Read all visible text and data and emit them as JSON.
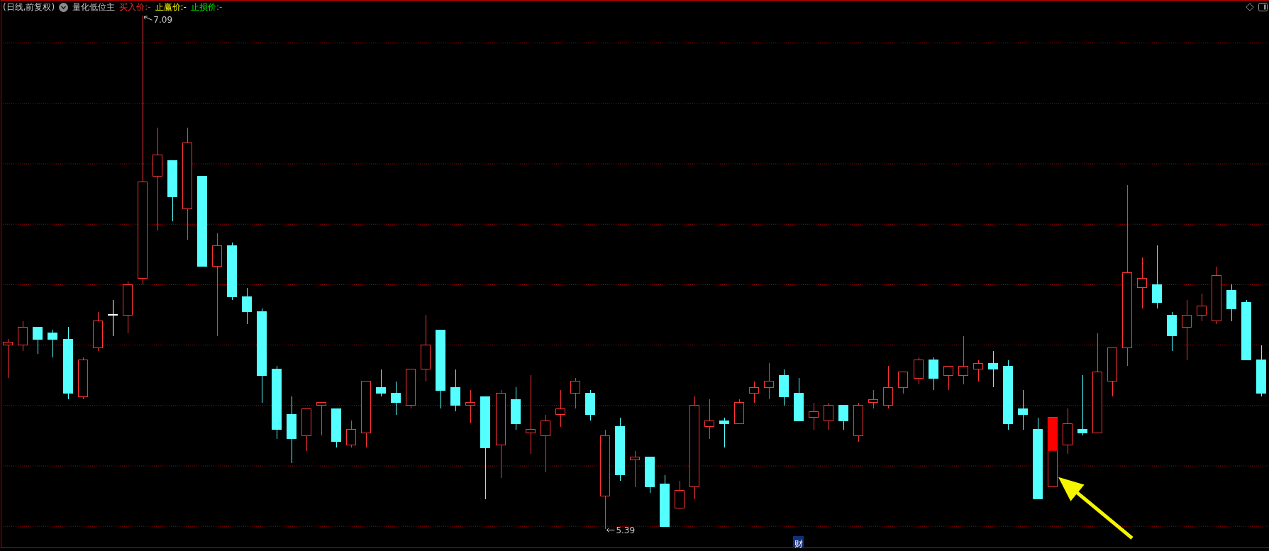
{
  "chart_data": {
    "type": "candlestick",
    "title": "(日线,前复权)",
    "subtitle": "量化低位主",
    "annotations": [
      "买入价:-",
      "止赢价:-",
      "止损价:-",
      "7.09",
      "5.39",
      "财"
    ],
    "categories": [
      null,
      null,
      null,
      null,
      null,
      null,
      null,
      null,
      null,
      null,
      null,
      null,
      null,
      null,
      null,
      null,
      null,
      null,
      null,
      null,
      null,
      null,
      null,
      null,
      null,
      null,
      null,
      null,
      null,
      null,
      null,
      null,
      null,
      null,
      null,
      null,
      null,
      null,
      null,
      null,
      null,
      null,
      null,
      null,
      null,
      null,
      null,
      null,
      null,
      null,
      null,
      null,
      null,
      null,
      null,
      null,
      null,
      null,
      null,
      null,
      null,
      null,
      null,
      null,
      null,
      null,
      null,
      null,
      null,
      null,
      null,
      null,
      null,
      null,
      null,
      null,
      null,
      null,
      null,
      null,
      null,
      null,
      null,
      null,
      null
    ],
    "ohlc": [
      [
        6.0,
        6.02,
        5.89,
        6.01
      ],
      [
        6.0,
        6.08,
        5.98,
        6.06
      ],
      [
        6.06,
        6.06,
        5.97,
        6.02
      ],
      [
        6.04,
        6.05,
        5.96,
        6.02
      ],
      [
        6.02,
        6.06,
        5.82,
        5.84
      ],
      [
        5.83,
        5.96,
        5.82,
        5.95
      ],
      [
        5.99,
        6.11,
        5.98,
        6.08
      ],
      [
        6.1,
        6.15,
        6.03,
        6.1
      ],
      [
        6.1,
        6.21,
        6.04,
        6.2
      ],
      [
        6.22,
        7.09,
        6.2,
        6.54
      ],
      [
        6.56,
        6.72,
        6.38,
        6.63
      ],
      [
        6.61,
        6.61,
        6.41,
        6.49
      ],
      [
        6.45,
        6.72,
        6.35,
        6.67
      ],
      [
        6.56,
        6.56,
        6.26,
        6.26
      ],
      [
        6.26,
        6.37,
        6.03,
        6.33
      ],
      [
        6.33,
        6.34,
        6.15,
        6.16
      ],
      [
        6.16,
        6.19,
        6.07,
        6.11
      ],
      [
        6.11,
        6.12,
        5.81,
        5.9
      ],
      [
        5.92,
        5.93,
        5.69,
        5.72
      ],
      [
        5.77,
        5.83,
        5.61,
        5.69
      ],
      [
        5.7,
        5.79,
        5.65,
        5.79
      ],
      [
        5.8,
        5.81,
        5.7,
        5.81
      ],
      [
        5.79,
        5.79,
        5.66,
        5.68
      ],
      [
        5.67,
        5.75,
        5.66,
        5.72
      ],
      [
        5.71,
        5.88,
        5.66,
        5.88
      ],
      [
        5.86,
        5.92,
        5.83,
        5.84
      ],
      [
        5.84,
        5.88,
        5.77,
        5.81
      ],
      [
        5.8,
        5.92,
        5.79,
        5.92
      ],
      [
        5.92,
        6.1,
        5.88,
        6.0
      ],
      [
        6.05,
        6.05,
        5.79,
        5.85
      ],
      [
        5.86,
        5.92,
        5.78,
        5.8
      ],
      [
        5.8,
        5.85,
        5.74,
        5.81
      ],
      [
        5.83,
        5.83,
        5.49,
        5.66
      ],
      [
        5.67,
        5.85,
        5.56,
        5.84
      ],
      [
        5.82,
        5.86,
        5.72,
        5.74
      ],
      [
        5.71,
        5.9,
        5.64,
        5.72
      ],
      [
        5.7,
        5.77,
        5.58,
        5.75
      ],
      [
        5.77,
        5.85,
        5.73,
        5.79
      ],
      [
        5.84,
        5.89,
        5.79,
        5.88
      ],
      [
        5.84,
        5.85,
        5.75,
        5.77
      ],
      [
        5.5,
        5.72,
        5.39,
        5.7
      ],
      [
        5.73,
        5.76,
        5.55,
        5.57
      ],
      [
        5.62,
        5.65,
        5.53,
        5.63
      ],
      [
        5.63,
        5.63,
        5.51,
        5.53
      ],
      [
        5.54,
        5.57,
        5.4,
        5.4
      ],
      [
        5.46,
        5.55,
        5.46,
        5.52
      ],
      [
        5.53,
        5.83,
        5.49,
        5.8
      ],
      [
        5.73,
        5.82,
        5.69,
        5.75
      ],
      [
        5.75,
        5.76,
        5.66,
        5.74
      ],
      [
        5.74,
        5.82,
        5.74,
        5.81
      ],
      [
        5.84,
        5.88,
        5.81,
        5.86
      ],
      [
        5.86,
        5.94,
        5.82,
        5.88
      ],
      [
        5.9,
        5.92,
        5.8,
        5.83
      ],
      [
        5.84,
        5.89,
        5.75,
        5.75
      ],
      [
        5.76,
        5.81,
        5.72,
        5.78
      ],
      [
        5.75,
        5.81,
        5.72,
        5.8
      ],
      [
        5.8,
        5.8,
        5.72,
        5.75
      ],
      [
        5.7,
        5.81,
        5.68,
        5.8
      ],
      [
        5.81,
        5.85,
        5.79,
        5.82
      ],
      [
        5.8,
        5.93,
        5.79,
        5.86
      ],
      [
        5.86,
        5.91,
        5.84,
        5.91
      ],
      [
        5.89,
        5.96,
        5.87,
        5.95
      ],
      [
        5.95,
        5.96,
        5.85,
        5.89
      ],
      [
        5.9,
        5.93,
        5.85,
        5.93
      ],
      [
        5.9,
        6.03,
        5.87,
        5.93
      ],
      [
        5.92,
        5.95,
        5.88,
        5.94
      ],
      [
        5.94,
        5.98,
        5.86,
        5.92
      ],
      [
        5.93,
        5.95,
        5.72,
        5.74
      ],
      [
        5.79,
        5.85,
        5.72,
        5.77
      ],
      [
        5.72,
        5.76,
        5.49,
        5.49
      ],
      [
        5.53,
        5.76,
        5.53,
        5.76
      ],
      [
        5.67,
        5.79,
        5.64,
        5.74
      ],
      [
        5.72,
        5.9,
        5.7,
        5.71
      ],
      [
        5.71,
        6.04,
        5.71,
        5.91
      ],
      [
        5.88,
        5.99,
        5.83,
        5.99
      ],
      [
        5.99,
        6.53,
        5.93,
        6.24
      ],
      [
        6.19,
        6.29,
        6.12,
        6.22
      ],
      [
        6.2,
        6.33,
        6.12,
        6.14
      ],
      [
        6.1,
        6.11,
        5.98,
        6.03
      ],
      [
        6.06,
        6.15,
        5.95,
        6.1
      ],
      [
        6.1,
        6.17,
        6.08,
        6.13
      ],
      [
        6.08,
        6.26,
        6.07,
        6.23
      ],
      [
        6.18,
        6.2,
        6.08,
        6.12
      ],
      [
        6.14,
        6.15,
        5.95,
        5.95
      ],
      [
        5.95,
        6.0,
        5.83,
        5.84
      ]
    ],
    "colors": [
      "#ff3333",
      "#ff3333",
      "#54ffff",
      "#54ffff",
      "#54ffff",
      "#ff3333",
      "#ff3333",
      "#ffffff",
      "#ff3333",
      "#ff3333",
      "#ff3333",
      "#54ffff",
      "#ff3333",
      "#54ffff",
      "#ff3333",
      "#54ffff",
      "#54ffff",
      "#54ffff",
      "#54ffff",
      "#54ffff",
      "#ff3333",
      "#ff3333",
      "#54ffff",
      "#ff3333",
      "#ff3333",
      "#54ffff",
      "#54ffff",
      "#ff3333",
      "#ff3333",
      "#54ffff",
      "#54ffff",
      "#ff3333",
      "#54ffff",
      "#ff3333",
      "#54ffff",
      "#ff3333",
      "#ff3333",
      "#ff3333",
      "#ff3333",
      "#54ffff",
      "#ff3333",
      "#54ffff",
      "#ff3333",
      "#54ffff",
      "#54ffff",
      "#ff3333",
      "#ff3333",
      "#ff3333",
      "#54ffff",
      "#ff3333",
      "#ff3333",
      "#ff3333",
      "#54ffff",
      "#54ffff",
      "#ff3333",
      "#ff3333",
      "#54ffff",
      "#ff3333",
      "#ff3333",
      "#ff3333",
      "#ff3333",
      "#ff3333",
      "#54ffff",
      "#ff3333",
      "#ff3333",
      "#ff3333",
      "#54ffff",
      "#54ffff",
      "#54ffff",
      "#54ffff",
      "#ff3333",
      "#ff3333",
      "#54ffff",
      "#ff3333",
      "#ff3333",
      "#ff3333",
      "#ff3333",
      "#54ffff",
      "#54ffff",
      "#ff3333",
      "#ff3333",
      "#ff3333",
      "#54ffff",
      "#54ffff",
      "#54ffff"
    ],
    "series": [
      {
        "type": "bar",
        "color": "#ff0000",
        "values": [
          null,
          null,
          null,
          null,
          null,
          null,
          null,
          null,
          null,
          null,
          null,
          null,
          null,
          null,
          null,
          null,
          null,
          null,
          null,
          null,
          null,
          null,
          null,
          null,
          null,
          null,
          null,
          null,
          null,
          null,
          null,
          null,
          null,
          null,
          null,
          null,
          null,
          null,
          null,
          null,
          null,
          null,
          null,
          null,
          null,
          null,
          null,
          null,
          null,
          null,
          null,
          null,
          null,
          null,
          null,
          null,
          null,
          null,
          null,
          null,
          null,
          null,
          null,
          null,
          null,
          null,
          null,
          null,
          null,
          null,
          0.11,
          null,
          null,
          null,
          null,
          null,
          null,
          null,
          null,
          null,
          null,
          null,
          null,
          null,
          null
        ],
        "base": [
          null,
          null,
          null,
          null,
          null,
          null,
          null,
          null,
          null,
          null,
          null,
          null,
          null,
          null,
          null,
          null,
          null,
          null,
          null,
          null,
          null,
          null,
          null,
          null,
          null,
          null,
          null,
          null,
          null,
          null,
          null,
          null,
          null,
          null,
          null,
          null,
          null,
          null,
          null,
          null,
          null,
          null,
          null,
          null,
          null,
          null,
          null,
          null,
          null,
          null,
          null,
          null,
          null,
          null,
          null,
          null,
          null,
          null,
          null,
          null,
          null,
          null,
          null,
          null,
          null,
          null,
          null,
          null,
          null,
          null,
          5.65,
          null,
          null,
          null,
          null,
          null,
          null,
          null,
          null,
          null,
          null,
          null,
          null,
          null,
          null
        ]
      }
    ],
    "ylim": [
      5.33,
      7.14
    ],
    "yticks": [
      {
        "value": 5.4,
        "label": null
      },
      {
        "value": 5.6,
        "label": null
      },
      {
        "value": 5.8,
        "label": null
      },
      {
        "value": 6.0,
        "label": null
      },
      {
        "value": 6.2,
        "label": null
      },
      {
        "value": 6.4,
        "label": null
      },
      {
        "value": 6.6,
        "label": null
      },
      {
        "value": 6.8,
        "label": null
      },
      {
        "value": 7.0,
        "label": null
      }
    ],
    "grid": "y"
  }
}
